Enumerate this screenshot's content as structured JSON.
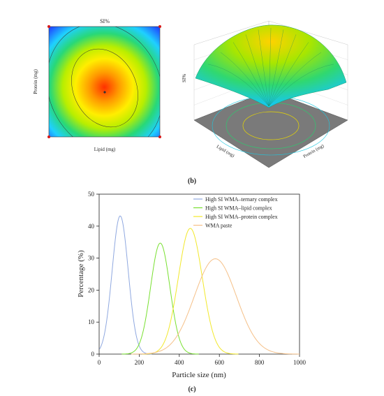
{
  "panel_b_label": "(b)",
  "panel_c_label": "(c)",
  "chart_data": [
    {
      "type": "heatmap",
      "title": "SI%",
      "xlabel": "Lipid (mg)",
      "ylabel": "Protein (mg)",
      "colors": [
        "#1f4fff",
        "#1fd0ff",
        "#28d878",
        "#b8ee00",
        "#ffee00",
        "#ff9900",
        "#ff3000"
      ]
    },
    {
      "type": "area",
      "zlabel": "SI%",
      "xlabel": "Lipid (mg)",
      "ylabel": "Protein (mg)"
    },
    {
      "type": "line",
      "xlabel": "Particle size (nm)",
      "ylabel": "Percentage (%)",
      "xlim": [
        0,
        1000
      ],
      "ylim": [
        0,
        50
      ],
      "xticks": [
        "0",
        "200",
        "400",
        "600",
        "800",
        "1000"
      ],
      "yticks": [
        "0",
        "10",
        "20",
        "30",
        "40",
        "50"
      ],
      "legend_position": "top-right",
      "series": [
        {
          "name": "High SI WMA–ternary complex",
          "color": "#8fa8e0",
          "peak_x": 105,
          "peak_y": 43.2,
          "sigma": 40
        },
        {
          "name": "High SI WMA–lipid complex",
          "color": "#78e030",
          "peak_x": 305,
          "peak_y": 34.7,
          "sigma": 48
        },
        {
          "name": "High SI WMA–protein complex",
          "color": "#f2e82a",
          "peak_x": 455,
          "peak_y": 39.3,
          "sigma": 60
        },
        {
          "name": "WMA paste",
          "color": "#f5c088",
          "peak_x": 580,
          "peak_y": 29.8,
          "sigma": 105
        }
      ]
    }
  ]
}
